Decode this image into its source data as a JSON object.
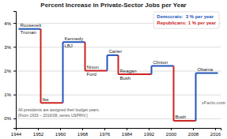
{
  "chart_data": {
    "type": "step",
    "title": "Percent Increase in Private-Sector Jobs per Year",
    "x": [
      1945,
      1953,
      1961,
      1969,
      1977,
      1981,
      1993,
      2001,
      2009
    ],
    "x_end": [
      1953,
      1961,
      1969,
      1977,
      1981,
      1993,
      2001,
      2009,
      2017
    ],
    "series": [
      {
        "name": "Democrats:  3 % per year",
        "color": "#2255bb",
        "values": [
          3.75,
          null,
          3.2,
          null,
          2.65,
          null,
          2.2,
          null,
          1.9
        ]
      },
      {
        "name": "Republicans: 1 % per year",
        "color": "#cc2222",
        "values": [
          null,
          0.65,
          null,
          2.0,
          null,
          1.85,
          null,
          -0.1,
          null
        ]
      }
    ],
    "segment_labels": [
      [
        "Roosevelt",
        "Truman"
      ],
      [
        "Ike"
      ],
      [
        "Kennedy",
        "LBJ"
      ],
      [
        "Nixon",
        "Ford"
      ],
      [
        "Carter"
      ],
      [
        "Reagan",
        "Bush"
      ],
      [
        "Clinton"
      ],
      [
        "Bush"
      ],
      [
        "Obama"
      ]
    ],
    "notes": [
      "All presidents are assigned their budget years.",
      "[From 1933 – 2016/08, series USPRIV.]"
    ],
    "watermark": "zFacts.com",
    "xlim": [
      1944,
      2018
    ],
    "ylim": [
      -0.4,
      4.5
    ],
    "xticks": [
      1944,
      1952,
      1960,
      1968,
      1976,
      1984,
      1992,
      2000,
      2008,
      2016
    ],
    "yticks": [
      {
        "value": 0,
        "label": "0%"
      },
      {
        "value": 1,
        "label": "1%"
      },
      {
        "value": 2,
        "label": "2%"
      },
      {
        "value": 3,
        "label": "3%"
      },
      {
        "value": 4,
        "label": "4%"
      }
    ],
    "grid": true,
    "legend": "upper right"
  }
}
